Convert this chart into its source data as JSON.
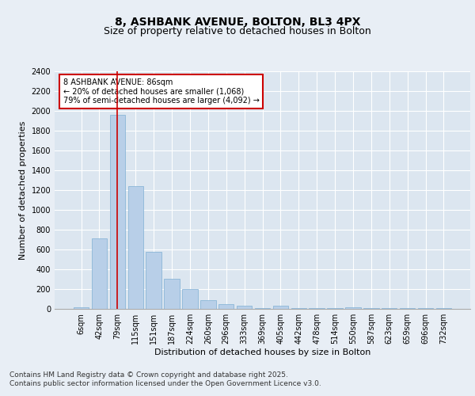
{
  "title": "8, ASHBANK AVENUE, BOLTON, BL3 4PX",
  "subtitle": "Size of property relative to detached houses in Bolton",
  "xlabel": "Distribution of detached houses by size in Bolton",
  "ylabel": "Number of detached properties",
  "categories": [
    "6sqm",
    "42sqm",
    "79sqm",
    "115sqm",
    "151sqm",
    "187sqm",
    "224sqm",
    "260sqm",
    "296sqm",
    "333sqm",
    "369sqm",
    "405sqm",
    "442sqm",
    "478sqm",
    "514sqm",
    "550sqm",
    "587sqm",
    "623sqm",
    "659sqm",
    "696sqm",
    "732sqm"
  ],
  "values": [
    20,
    710,
    1960,
    1240,
    575,
    305,
    200,
    85,
    50,
    35,
    10,
    35,
    5,
    5,
    5,
    20,
    5,
    5,
    5,
    5,
    5
  ],
  "bar_color": "#b8cfe8",
  "bar_edgecolor": "#7fafd4",
  "ylim": [
    0,
    2400
  ],
  "yticks": [
    0,
    200,
    400,
    600,
    800,
    1000,
    1200,
    1400,
    1600,
    1800,
    2000,
    2200,
    2400
  ],
  "vline_x": 2,
  "vline_color": "#cc0000",
  "annotation_text": "8 ASHBANK AVENUE: 86sqm\n← 20% of detached houses are smaller (1,068)\n79% of semi-detached houses are larger (4,092) →",
  "annotation_box_color": "#ffffff",
  "annotation_box_edgecolor": "#cc0000",
  "footer1": "Contains HM Land Registry data © Crown copyright and database right 2025.",
  "footer2": "Contains public sector information licensed under the Open Government Licence v3.0.",
  "bg_color": "#e8eef5",
  "plot_bg_color": "#dce6f0",
  "title_fontsize": 10,
  "subtitle_fontsize": 9,
  "tick_fontsize": 7,
  "ylabel_fontsize": 8,
  "xlabel_fontsize": 8,
  "footer_fontsize": 6.5
}
